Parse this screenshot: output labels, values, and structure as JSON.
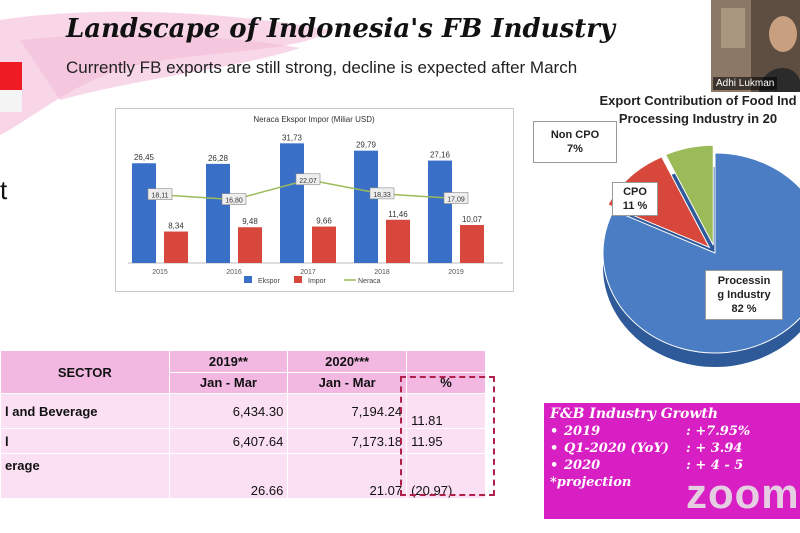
{
  "slide": {
    "title": "Landscape of Indonesia's FB Industry",
    "subtitle": "Currently FB exports are still strong, decline is expected after March",
    "side_fragment": "t"
  },
  "video": {
    "participant_name": "Adhi Lukman"
  },
  "chart_data": [
    {
      "type": "bar",
      "title": "Neraca Ekspor Impor (Miliar USD)",
      "categories": [
        "2015",
        "2016",
        "2017",
        "2018",
        "2019"
      ],
      "category_labels": [
        "2015",
        "2016",
        "2017",
        "2018",
        "2019"
      ],
      "series": [
        {
          "name": "Ekspor",
          "type": "bar",
          "color": "#3a6fc8",
          "values": [
            26.45,
            26.28,
            31.73,
            29.79,
            27.16
          ],
          "labels": [
            "26,45",
            "26,28",
            "31,73",
            "29,79",
            "27,16"
          ]
        },
        {
          "name": "Impor",
          "type": "bar",
          "color": "#d8473b",
          "values": [
            8.34,
            9.48,
            9.66,
            11.46,
            10.07
          ],
          "labels": [
            "8,34",
            "9,48",
            "9,66",
            "11,46",
            "10,07"
          ]
        },
        {
          "name": "Neraca",
          "type": "line",
          "color": "#9bbb59",
          "values": [
            18.11,
            16.8,
            22.07,
            18.33,
            17.09
          ],
          "labels": [
            "18,11",
            "16,80",
            "22,07",
            "18,33",
            "17,09"
          ]
        }
      ],
      "legend_position": "bottom",
      "ylim": [
        0,
        35
      ]
    },
    {
      "type": "pie",
      "title": "Export Contribution of Food Ind Processing Industry in 20",
      "slices": [
        {
          "label": "Processin g Industry",
          "label_lines": [
            "Processin",
            "g Industry"
          ],
          "value": 82,
          "value_label": "82 %",
          "color": "#4a7dc4"
        },
        {
          "label": "CPO",
          "label_lines": [
            "CPO"
          ],
          "value": 11,
          "value_label": "11 %",
          "color": "#d8473b"
        },
        {
          "label": "Non CPO",
          "label_lines": [
            "Non CPO"
          ],
          "value": 7,
          "value_label": "7%",
          "color": "#9bbb59"
        }
      ]
    }
  ],
  "table": {
    "header_sector": "SECTOR",
    "header_2019": "2019**",
    "header_2020": "2020***",
    "sub_2019": "Jan - Mar",
    "sub_2020": "Jan - Mar",
    "sub_pct": "%",
    "rows": [
      {
        "sector": "l and Beverage",
        "v2019": "6,434.30",
        "v2020": "7,194.24",
        "pct": "11.81"
      },
      {
        "sector": "l",
        "v2019": "6,407.64",
        "v2020": "7,173.18",
        "pct": "11.95"
      },
      {
        "sector": "erage",
        "v2019": "26.66",
        "v2020": "21.07",
        "pct": "(20.97)"
      }
    ]
  },
  "growth": {
    "title": "F&B Industry Growth",
    "items": [
      {
        "bullet": "•",
        "label": "2019",
        "value": ": +7.95%"
      },
      {
        "bullet": "•",
        "label": "Q1-2020 (YoY)",
        "value": ": + 3.94"
      },
      {
        "bullet": "•",
        "label": "2020",
        "value": ": + 4 - 5"
      }
    ],
    "note": "*projection"
  },
  "zoom_logo": "zoom",
  "colors": {
    "pink_accent": "#f5c6df",
    "magenta_box": "#d81fc4",
    "table_header": "#f2b8e2",
    "table_body": "#fbe0f4"
  }
}
